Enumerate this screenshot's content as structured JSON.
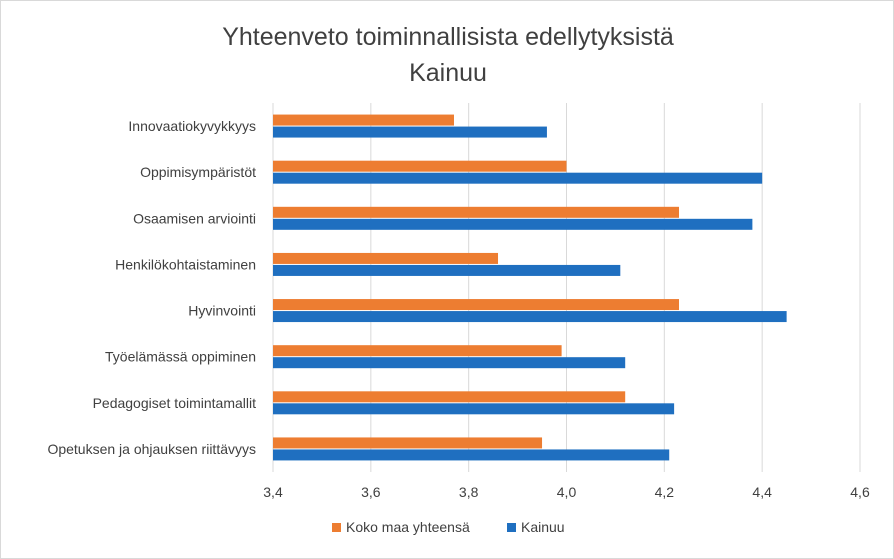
{
  "chart_data": {
    "type": "bar",
    "orientation": "horizontal",
    "title": "Yhteenveto toiminnallisista edellytyksistä",
    "subtitle": "Kainuu",
    "categories": [
      "Innovaatiokyvykkyys",
      "Oppimisympäristöt",
      "Osaamisen arviointi",
      "Henkilökohtaistaminen",
      "Hyvinvointi",
      "Työelämässä oppiminen",
      "Pedagogiset toimintamallit",
      "Opetuksen ja ohjauksen riittävyys"
    ],
    "series": [
      {
        "name": "Koko maa yhteensä",
        "color": "#ed7d31",
        "values": [
          3.77,
          4.0,
          4.23,
          3.86,
          4.23,
          3.99,
          4.12,
          3.95
        ]
      },
      {
        "name": "Kainuu",
        "color": "#1f6fc0",
        "values": [
          3.96,
          4.4,
          4.38,
          4.11,
          4.45,
          4.12,
          4.22,
          4.21
        ]
      }
    ],
    "xlim": [
      3.4,
      4.6
    ],
    "xticks": [
      "3,4",
      "3,6",
      "3,8",
      "4,0",
      "4,2",
      "4,4",
      "4,6"
    ],
    "xtick_values": [
      3.4,
      3.6,
      3.8,
      4.0,
      4.2,
      4.4,
      4.6
    ],
    "grid": true,
    "legend_position": "bottom"
  }
}
